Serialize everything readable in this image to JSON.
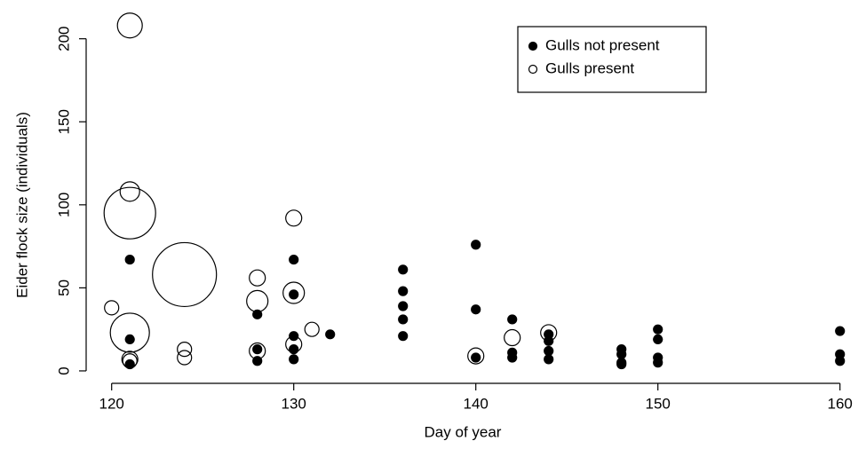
{
  "chart_data": {
    "type": "scatter",
    "xlabel": "Day of year",
    "ylabel": "Eider flock size (individuals)",
    "xlim": [
      118.6,
      160.6
    ],
    "ylim": [
      -7.5,
      218
    ],
    "xticks": [
      120,
      130,
      140,
      150,
      160
    ],
    "yticks": [
      0,
      50,
      100,
      150,
      200
    ],
    "legend": "top-right",
    "series": [
      {
        "name": "Gulls not present",
        "color": "#000000",
        "filled": true,
        "x": [
          121,
          121,
          121,
          128,
          128,
          128,
          130,
          130,
          130,
          130,
          130,
          132,
          136,
          136,
          136,
          136,
          136,
          140,
          140,
          140,
          142,
          142,
          142,
          144,
          144,
          144,
          144,
          148,
          148,
          148,
          148,
          150,
          150,
          150,
          150,
          160,
          160,
          160
        ],
        "values": [
          67,
          19,
          4,
          34,
          13,
          6,
          67,
          46,
          21,
          13,
          7,
          22,
          61,
          48,
          39,
          31,
          21,
          76,
          37,
          8,
          31,
          11,
          8,
          22,
          18,
          12,
          7,
          13,
          10,
          5,
          4,
          25,
          19,
          8,
          5,
          24,
          10,
          6
        ]
      },
      {
        "name": "Gulls present",
        "color": "#000000",
        "filled": false,
        "x": [
          120,
          121,
          121,
          121,
          121,
          121,
          121,
          124,
          124,
          124,
          128,
          128,
          128,
          130,
          130,
          130,
          131,
          140,
          142,
          144
        ],
        "values": [
          38,
          208,
          108,
          95,
          23,
          6,
          7,
          58,
          13,
          8,
          56,
          42,
          12,
          92,
          47,
          16,
          25,
          9,
          20,
          23
        ],
        "sizes": [
          8,
          14,
          11,
          29,
          22,
          8,
          9,
          36,
          8,
          8,
          9,
          12,
          9,
          9,
          12,
          9,
          8,
          9,
          9,
          9
        ]
      }
    ]
  }
}
